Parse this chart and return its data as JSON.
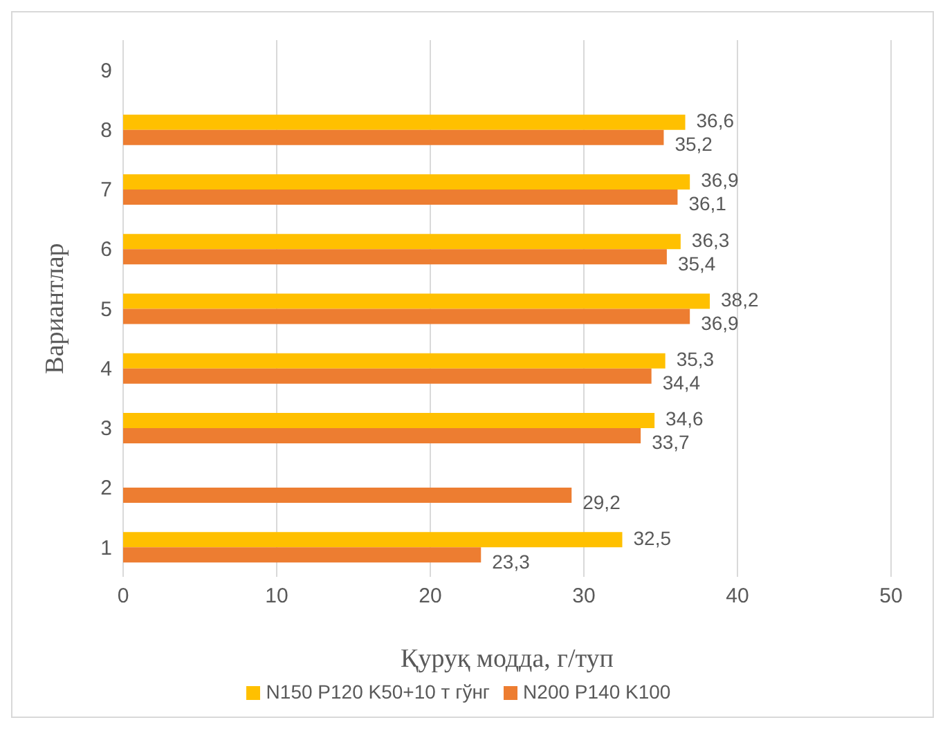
{
  "chart_data": {
    "type": "bar",
    "orientation": "horizontal",
    "xlabel": "Қуруқ модда, г/туп",
    "ylabel": "Вариантлар",
    "categories": [
      "9",
      "8",
      "7",
      "6",
      "5",
      "4",
      "3",
      "2",
      "1"
    ],
    "series": [
      {
        "name": "N150 P120 K50+10 т гўнг",
        "color": "#ffc000",
        "values": [
          null,
          36.6,
          36.9,
          36.3,
          38.2,
          35.3,
          34.6,
          null,
          32.5
        ],
        "value_labels": [
          null,
          "36,6",
          "36,9",
          "36,3",
          "38,2",
          "35,3",
          "34,6",
          null,
          "32,5"
        ]
      },
      {
        "name": "N200 P140 K100",
        "color": "#ed7d31",
        "values": [
          null,
          35.2,
          36.1,
          35.4,
          36.9,
          34.4,
          33.7,
          29.2,
          23.3
        ],
        "value_labels": [
          null,
          "35,2",
          "36,1",
          "35,4",
          "36,9",
          "34,4",
          "33,7",
          "29,2",
          "23,3"
        ]
      }
    ],
    "xlim": [
      0,
      50
    ],
    "xticks": [
      0,
      10,
      20,
      30,
      40,
      50
    ],
    "grid": "x",
    "legend": "bottom"
  }
}
